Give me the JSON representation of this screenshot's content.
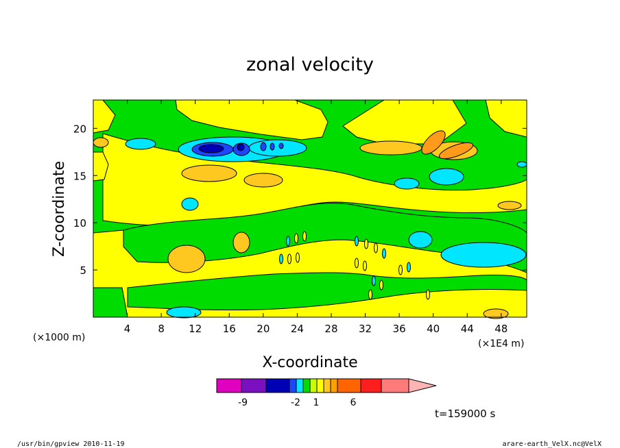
{
  "chart_data": {
    "type": "heatmap",
    "title": "zonal velocity",
    "xlabel": "X-coordinate",
    "ylabel": "Z-coordinate",
    "x_unit": "(×1E4 m)",
    "y_unit": "(×1000 m)",
    "xlim": [
      0,
      51
    ],
    "ylim": [
      0,
      23
    ],
    "x_ticks": [
      "4",
      "8",
      "12",
      "16",
      "20",
      "24",
      "28",
      "32",
      "36",
      "40",
      "44",
      "48"
    ],
    "x_tick_values": [
      4,
      8,
      12,
      16,
      20,
      24,
      28,
      32,
      36,
      40,
      44,
      48
    ],
    "y_ticks": [
      "5",
      "10",
      "15",
      "20"
    ],
    "y_tick_values": [
      5,
      10,
      15,
      20
    ],
    "colorbar": {
      "colors": [
        "#e000c0",
        "#7a10c0",
        "#0000b4",
        "#1e46ff",
        "#00e6ff",
        "#00dc00",
        "#c8ff00",
        "#ffff00",
        "#ffc820",
        "#ffa000",
        "#ff6400",
        "#ff1e1e",
        "#ff7a7a",
        "#ffb4b4"
      ],
      "labels": [
        "-9",
        "-2",
        "1",
        "6"
      ]
    },
    "time_label": "t=159000 s",
    "palette": {
      "green": "#00dc00",
      "yellow": "#ffff00",
      "orange": "#ffc820",
      "dark_orange": "#ff9a1a",
      "cyan": "#00e6ff",
      "blue": "#1e46ff",
      "dark_blue": "#0000b4"
    }
  },
  "footer": {
    "left": "/usr/bin/gpview   2010-11-19",
    "right": "arare-earth_VelX.nc@VelX"
  }
}
